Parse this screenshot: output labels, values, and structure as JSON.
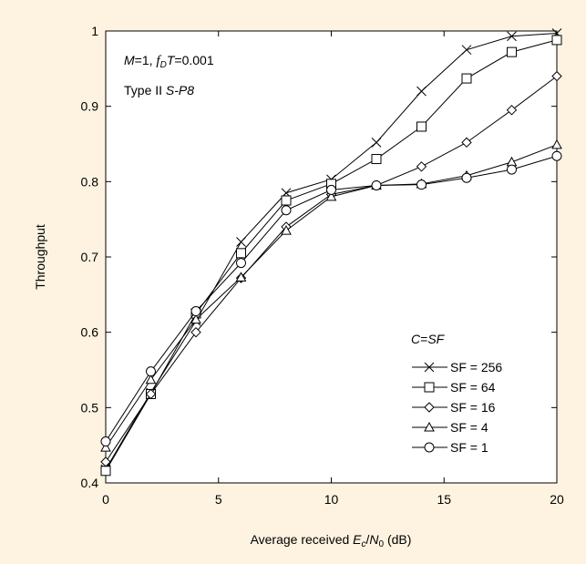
{
  "chart_data": {
    "type": "line",
    "xlabel": {
      "pre": "Average received ",
      "E": "E",
      "Esub": "c",
      "slash": "/",
      "N": "N",
      "Nsub": "0",
      "post": " (dB)"
    },
    "ylabel": "Throughput",
    "xlim": [
      0,
      20
    ],
    "ylim": [
      0.4,
      1.0
    ],
    "xticks": [
      "0",
      "5",
      "10",
      "15",
      "20"
    ],
    "yticks": [
      "0.4",
      "0.5",
      "0.6",
      "0.7",
      "0.8",
      "0.9",
      "1"
    ],
    "annotations": {
      "line1": {
        "M": "M",
        "eq1": "=1, ",
        "fD": "f",
        "Dsub": "D",
        "T": "T",
        "eq2": "=0.001"
      },
      "line2": {
        "pre": "Type II ",
        "ital": "S-P8"
      }
    },
    "legend": {
      "title": {
        "C": "C",
        "eq": "=",
        "SF": "SF"
      },
      "position": "bottom-right"
    },
    "x": [
      0,
      2,
      4,
      6,
      8,
      10,
      12,
      14,
      16,
      18,
      20
    ],
    "series": [
      {
        "name": "SF = 256",
        "marker": "x",
        "values": [
          0.418,
          0.52,
          0.615,
          0.72,
          0.785,
          0.803,
          0.852,
          0.92,
          0.975,
          0.993,
          0.997
        ]
      },
      {
        "name": "SF = 64",
        "marker": "square",
        "values": [
          0.416,
          0.518,
          0.625,
          0.705,
          0.775,
          0.797,
          0.83,
          0.873,
          0.937,
          0.972,
          0.988
        ]
      },
      {
        "name": "SF = 16",
        "marker": "diamond",
        "values": [
          0.428,
          0.518,
          0.6,
          0.672,
          0.74,
          0.783,
          0.795,
          0.82,
          0.852,
          0.895,
          0.94
        ]
      },
      {
        "name": "SF = 4",
        "marker": "triangle",
        "values": [
          0.447,
          0.537,
          0.617,
          0.673,
          0.735,
          0.78,
          0.795,
          0.797,
          0.808,
          0.826,
          0.849
        ]
      },
      {
        "name": "SF = 1",
        "marker": "circle",
        "values": [
          0.455,
          0.548,
          0.628,
          0.692,
          0.762,
          0.789,
          0.795,
          0.796,
          0.805,
          0.816,
          0.834
        ]
      }
    ]
  }
}
